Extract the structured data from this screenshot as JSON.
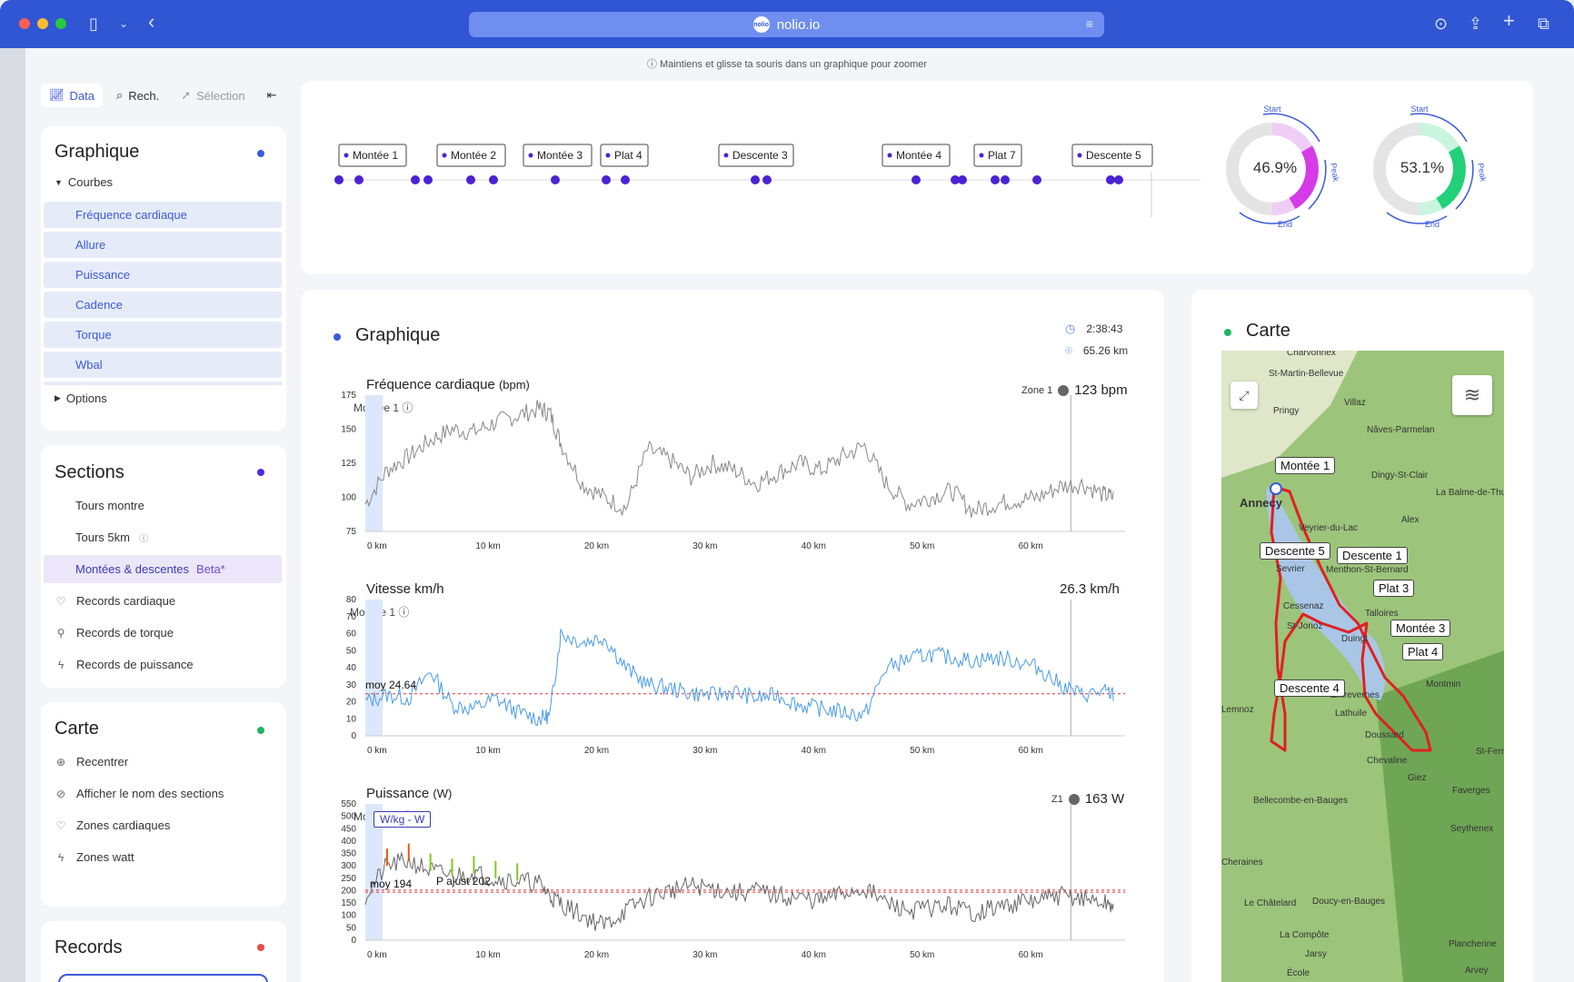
{
  "browser": {
    "url": "nolio.io",
    "logo": "nolio"
  },
  "hint": "ⓘ Maintiens et glisse ta souris dans un graphique pour zoomer",
  "sidebar": {
    "tabs": [
      {
        "label": "Data"
      },
      {
        "label": "Rech."
      },
      {
        "label": "Sélection"
      }
    ],
    "graphique": {
      "title": "Graphique",
      "courbes_label": "Courbes",
      "curves": [
        "Fréquence cardiaque",
        "Allure",
        "Puissance",
        "Cadence",
        "Torque",
        "Wbal"
      ],
      "options_label": "Options"
    },
    "sections": {
      "title": "Sections",
      "items": [
        "Tours montre",
        "Tours 5km"
      ],
      "selected": "Montées & descentes",
      "selected_badge": "Beta*",
      "records": [
        "Records cardiaque",
        "Records de torque",
        "Records de puissance"
      ]
    },
    "carte": {
      "title": "Carte",
      "items": [
        "Recentrer",
        "Afficher le nom des sections",
        "Zones cardiaques",
        "Zones watt"
      ]
    },
    "records": {
      "title": "Records"
    }
  },
  "timeline": {
    "labels": [
      "Montée 1",
      "Montée 2",
      "Montée 3",
      "Plat 4",
      "Descente 3",
      "Montée 4",
      "Plat 7",
      "Descente 5"
    ],
    "donuts": [
      {
        "value": "46.9%",
        "color": "#d63be8",
        "light": "#f0cdf7",
        "start": "Start",
        "peak": "Peak",
        "end": "End"
      },
      {
        "value": "53.1%",
        "color": "#22d07a",
        "light": "#c9f5de",
        "start": "Start",
        "peak": "Peak",
        "end": "End"
      }
    ]
  },
  "graph_panel": {
    "title": "Graphique",
    "duration": "2:38:43",
    "distance": "65.26 km",
    "hr": {
      "title": "Fréquence cardiaque",
      "unit": "(bpm)",
      "zone": "Zone 1",
      "value": "123 bpm",
      "lap": "Montée 1 ⓘ"
    },
    "speed": {
      "title": "Vitesse km/h",
      "value": "26.3 km/h",
      "lap": "Montée 1 ⓘ",
      "avg": "moy 24.64"
    },
    "power": {
      "title": "Puissance",
      "unit": "(W)",
      "zone": "Z1",
      "value": "163 W",
      "lap": "Montée 1 ⓘ",
      "toggle": "W/kg - W",
      "avg": "moy 194",
      "adjusted": "P ajust 202"
    }
  },
  "map": {
    "title": "Carte",
    "labels": [
      "Montée 1",
      "Descente 5",
      "Descente 1",
      "Plat 3",
      "Montée 3",
      "Plat 4",
      "Descente 4"
    ],
    "towns": [
      "Charvonnex",
      "St-Martin-Bellevue",
      "Villaz",
      "Pringy",
      "Nâves-Parmelan",
      "Dingy-St-Clair",
      "La Balme-de-Thuy",
      "Alex",
      "Annecy",
      "Veyrier-du-Lac",
      "Menthon-St-Bernard",
      "Sevrier",
      "Cessenaz",
      "Talloires",
      "St-Jorioz",
      "Duingt",
      "Entrevernes",
      "Lathuile",
      "Montmin",
      "Doussard",
      "Chevaline",
      "Giez",
      "Faverges",
      "Bellecombe-en-Bauges",
      "Seythenex",
      "Le Châtelard",
      "Doucy-en-Bauges",
      "La Compôte",
      "Jarsy",
      "École",
      "Plancherine",
      "Arvey",
      "St-Ferr",
      "Cheraines",
      "Lemnoz"
    ]
  },
  "chart_data": [
    {
      "type": "line",
      "title": "Fréquence cardiaque (bpm)",
      "xlabel": "km",
      "ylabel": "bpm",
      "x_ticks": [
        "0 km",
        "10 km",
        "20 km",
        "30 km",
        "40 km",
        "50 km",
        "60 km"
      ],
      "y_ticks": [
        75,
        100,
        125,
        150,
        175
      ],
      "xlim": [
        0,
        70
      ],
      "ylim": [
        75,
        175
      ],
      "series": [
        {
          "name": "Fréquence cardiaque",
          "x": [
            0,
            2,
            4,
            6,
            8,
            10,
            12,
            14,
            16,
            17,
            18,
            20,
            22,
            24,
            26,
            28,
            30,
            32,
            34,
            36,
            38,
            40,
            42,
            44,
            46,
            48,
            50,
            52,
            54,
            56,
            58,
            60,
            62,
            64,
            66,
            68,
            69
          ],
          "values": [
            95,
            120,
            130,
            142,
            150,
            148,
            155,
            160,
            165,
            162,
            140,
            110,
            100,
            92,
            135,
            128,
            115,
            125,
            120,
            110,
            118,
            125,
            120,
            130,
            138,
            110,
            95,
            100,
            105,
            90,
            95,
            98,
            100,
            108,
            110,
            102,
            100
          ]
        }
      ]
    },
    {
      "type": "line",
      "title": "Vitesse km/h",
      "xlabel": "km",
      "ylabel": "km/h",
      "x_ticks": [
        "0 km",
        "10 km",
        "20 km",
        "30 km",
        "40 km",
        "50 km",
        "60 km"
      ],
      "y_ticks": [
        0,
        10,
        20,
        30,
        40,
        50,
        60,
        70,
        80
      ],
      "xlim": [
        0,
        70
      ],
      "ylim": [
        0,
        80
      ],
      "average": 24.64,
      "series": [
        {
          "name": "Vitesse",
          "x": [
            0,
            2,
            4,
            6,
            8,
            10,
            12,
            14,
            16,
            17,
            18,
            20,
            22,
            24,
            26,
            28,
            30,
            32,
            34,
            36,
            38,
            40,
            42,
            44,
            46,
            48,
            50,
            52,
            54,
            56,
            58,
            60,
            62,
            64,
            66,
            68,
            69
          ],
          "values": [
            20,
            24,
            22,
            38,
            18,
            16,
            22,
            14,
            10,
            12,
            60,
            55,
            58,
            40,
            30,
            28,
            25,
            24,
            26,
            22,
            24,
            18,
            16,
            14,
            12,
            40,
            45,
            48,
            46,
            44,
            46,
            44,
            40,
            30,
            24,
            26,
            24
          ]
        }
      ]
    },
    {
      "type": "line",
      "title": "Puissance (W)",
      "xlabel": "km",
      "ylabel": "W",
      "x_ticks": [
        "0 km",
        "10 km",
        "20 km",
        "30 km",
        "40 km",
        "50 km",
        "60 km"
      ],
      "y_ticks": [
        0,
        50,
        100,
        150,
        200,
        250,
        300,
        350,
        400,
        450,
        500,
        550
      ],
      "xlim": [
        0,
        70
      ],
      "ylim": [
        0,
        550
      ],
      "average": 194,
      "adjusted": 202,
      "series": [
        {
          "name": "Puissance",
          "x": [
            0,
            2,
            4,
            6,
            8,
            10,
            12,
            14,
            16,
            17,
            18,
            20,
            22,
            24,
            26,
            28,
            30,
            32,
            34,
            36,
            38,
            40,
            42,
            44,
            46,
            48,
            50,
            52,
            54,
            56,
            58,
            60,
            62,
            64,
            66,
            68,
            69
          ],
          "values": [
            180,
            300,
            320,
            280,
            260,
            270,
            250,
            240,
            230,
            180,
            150,
            100,
            60,
            120,
            170,
            200,
            220,
            210,
            190,
            200,
            180,
            170,
            160,
            190,
            210,
            150,
            120,
            130,
            140,
            110,
            130,
            150,
            160,
            180,
            170,
            150,
            140
          ]
        }
      ]
    }
  ]
}
